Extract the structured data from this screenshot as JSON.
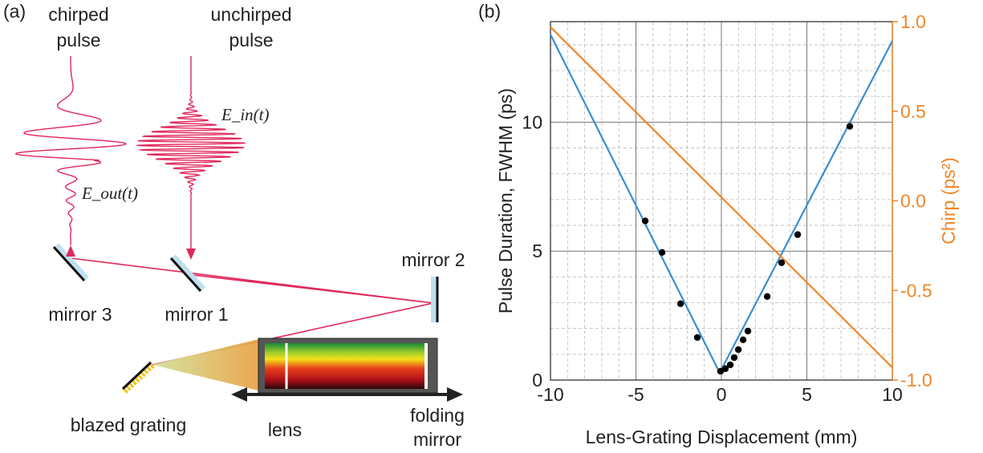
{
  "diagram": {
    "panel_label": "(a)",
    "chirped_label": [
      "chirped",
      "pulse"
    ],
    "unchirped_label": [
      "unchirped",
      "pulse"
    ],
    "e_in": "E_in(t)",
    "e_out": "E_out(t)",
    "mirror_3": "mirror 3",
    "mirror_1": "mirror 1",
    "mirror_2": "mirror 2",
    "grating": "blazed grating",
    "lens": "lens",
    "folding_mirror": [
      "folding",
      "mirror"
    ]
  },
  "chart_data": {
    "type": "line",
    "panel_label": "(b)",
    "x_label": "Lens-Grating Displacement (mm)",
    "y_label": "Pulse Duration, FWHM (ps)",
    "y2_label": "Chirp (ps²)",
    "y2_color": "#f0862a",
    "xlim": [
      -10,
      10
    ],
    "ylim": [
      0,
      13.9
    ],
    "y2lim": [
      -1,
      1
    ],
    "xticks": [
      -10,
      -5,
      0,
      5,
      10
    ],
    "yticks": [
      0,
      5,
      10
    ],
    "y2ticks": [
      {
        "value": 1,
        "label": "1.0"
      },
      0.5,
      {
        "value": 0,
        "label": "0.0"
      },
      -0.5,
      {
        "value": -1,
        "label": "-1.0"
      }
    ],
    "grid": true,
    "minor_grid": true,
    "series": [
      {
        "type": "line",
        "color": "#3a8fce",
        "x": [
          -10,
          -0.1,
          10
        ],
        "values": [
          13.4,
          0.28,
          13.15
        ]
      },
      {
        "type": "line",
        "color": "#f0862a",
        "axis": "y2",
        "x": [
          -10,
          10
        ],
        "values": [
          0.97,
          -0.93
        ]
      },
      {
        "type": "scatter",
        "color": "#000000",
        "x": [
          -4.46,
          -3.47,
          -2.39,
          -1.41,
          -0.05,
          0.23,
          0.52,
          0.75,
          0.99,
          1.27,
          1.55,
          2.68,
          3.52,
          4.46,
          7.51
        ],
        "values": [
          6.17,
          4.95,
          2.96,
          1.65,
          0.34,
          0.44,
          0.59,
          0.87,
          1.18,
          1.56,
          1.9,
          3.24,
          4.55,
          5.64,
          9.84
        ]
      }
    ]
  }
}
